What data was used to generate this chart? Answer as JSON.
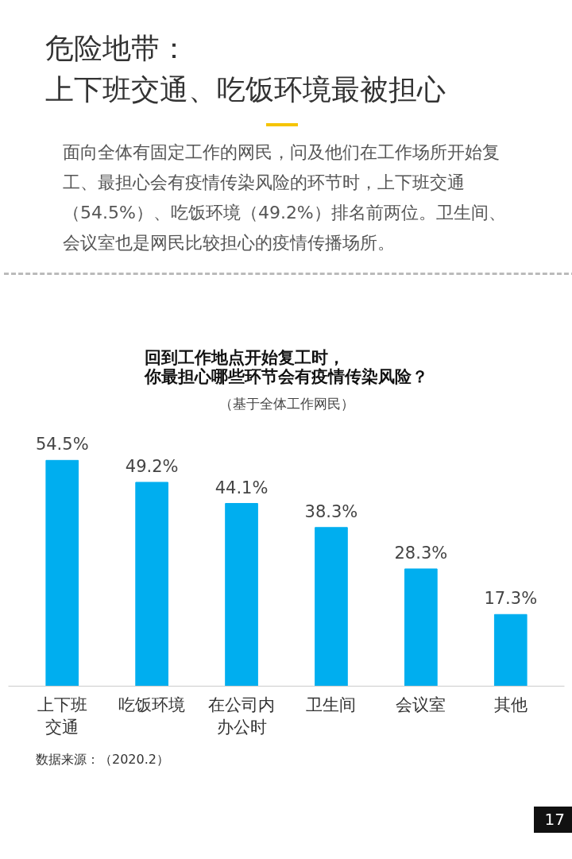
{
  "chart_data": {
    "type": "bar",
    "title": "回到工作地点开始复工时，你最担心哪些环节会有疫情传染风险？",
    "subtitle": "（基于全体工作网民）",
    "categories": [
      "上下班交通",
      "吃饭环境",
      "在公司内办公时",
      "卫生间",
      "会议室",
      "其他"
    ],
    "values": [
      54.5,
      49.2,
      44.1,
      38.3,
      28.3,
      17.3
    ],
    "value_labels": [
      "54.5%",
      "49.2%",
      "44.1%",
      "38.3%",
      "28.3%",
      "17.3%"
    ],
    "color": "#00aeef",
    "grid": false,
    "annotations": [
      "危险地带：",
      "上下班交通、吃饭环境最被担心",
      "面向全体有固定工作的网民，问及他们在工作场所开始复工、最担心会有疫情传染风险的环节时，上下班交通（54.5%）、吃饭环境（49.2%）排名前两位。卫生间、会议室也是网民比较担心的疫情传播场所。",
      "数据来源：（2020.2）",
      "17"
    ]
  }
}
